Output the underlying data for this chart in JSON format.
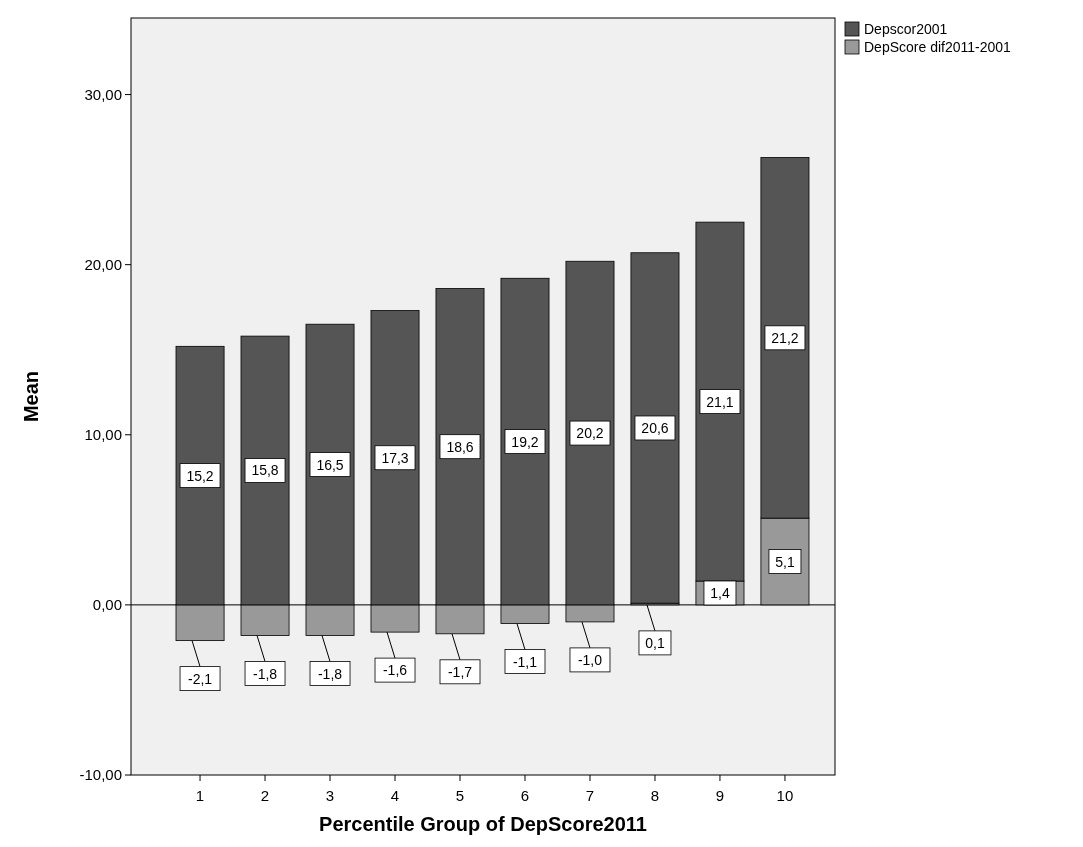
{
  "chart_data": {
    "type": "bar",
    "stacked": true,
    "xlabel": "Percentile Group of DepScore2011",
    "ylabel": "Mean",
    "categories": [
      "1",
      "2",
      "3",
      "4",
      "5",
      "6",
      "7",
      "8",
      "9",
      "10"
    ],
    "series": [
      {
        "name": "DepScore dif2011-2001",
        "color": "#999999",
        "values": [
          -2.1,
          -1.8,
          -1.8,
          -1.6,
          -1.7,
          -1.1,
          -1.0,
          0.1,
          1.4,
          5.1
        ],
        "value_labels": [
          "-2,1",
          "-1,8",
          "-1,8",
          "-1,6",
          "-1,7",
          "-1,1",
          "-1,0",
          "0,1",
          "1,4",
          "5,1"
        ]
      },
      {
        "name": "Depscor2001",
        "color": "#555555",
        "values": [
          15.2,
          15.8,
          16.5,
          17.3,
          18.6,
          19.2,
          20.2,
          20.6,
          21.1,
          21.2
        ],
        "value_labels": [
          "15,2",
          "15,8",
          "16,5",
          "17,3",
          "18,6",
          "19,2",
          "20,2",
          "20,6",
          "21,1",
          "21,2"
        ]
      }
    ],
    "ylim": [
      -10,
      34.5
    ],
    "yticks": [
      {
        "value": -10,
        "label": "-10,00"
      },
      {
        "value": 0,
        "label": "0,00"
      },
      {
        "value": 10,
        "label": "10,00"
      },
      {
        "value": 20,
        "label": "20,00"
      },
      {
        "value": 30,
        "label": "30,00"
      }
    ],
    "legend": "top right"
  }
}
